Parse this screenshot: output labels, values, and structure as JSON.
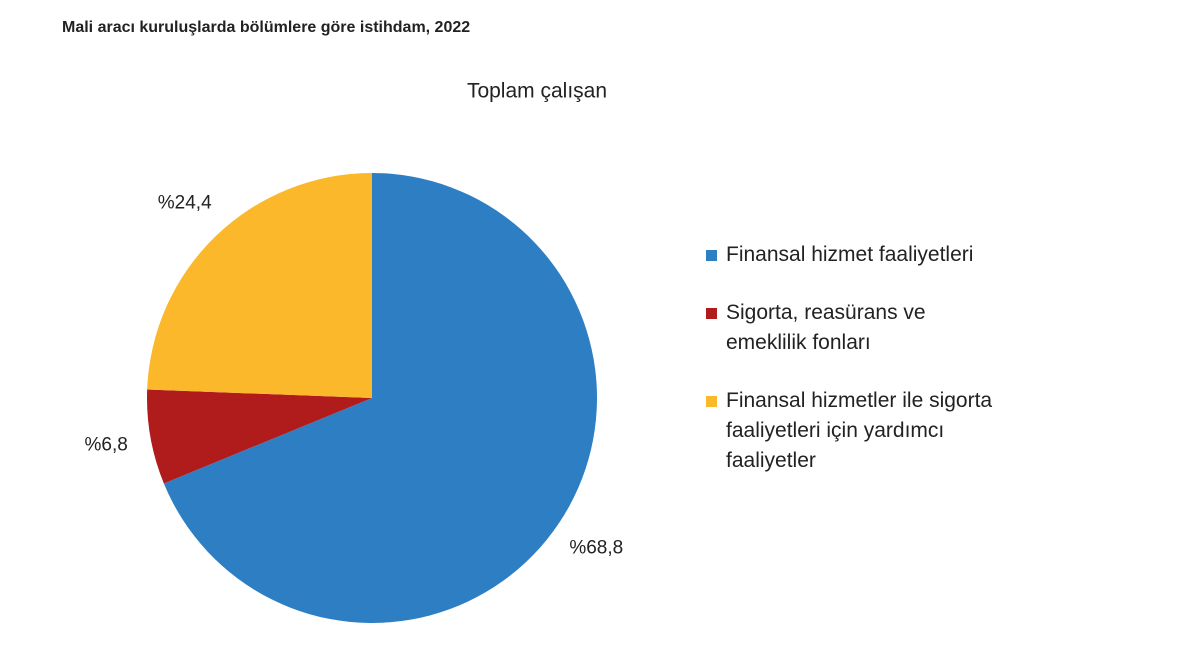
{
  "chart_data": {
    "type": "pie",
    "title": "Mali aracı kuruluşlarda bölümlere göre istihdam, 2022",
    "subtitle": "Toplam çalışan",
    "categories": [
      "Finansal hizmet faaliyetleri",
      "Sigorta, reasürans ve emeklilik fonları",
      "Finansal hizmetler ile sigorta faaliyetleri için yardımcı faaliyetler"
    ],
    "values": [
      68.8,
      6.8,
      24.4
    ],
    "value_labels": [
      "%68,8",
      "%6,8",
      "%24,4"
    ],
    "colors": [
      "#2e7ec4",
      "#b01c1c",
      "#fbb82a"
    ],
    "legend": "right"
  }
}
